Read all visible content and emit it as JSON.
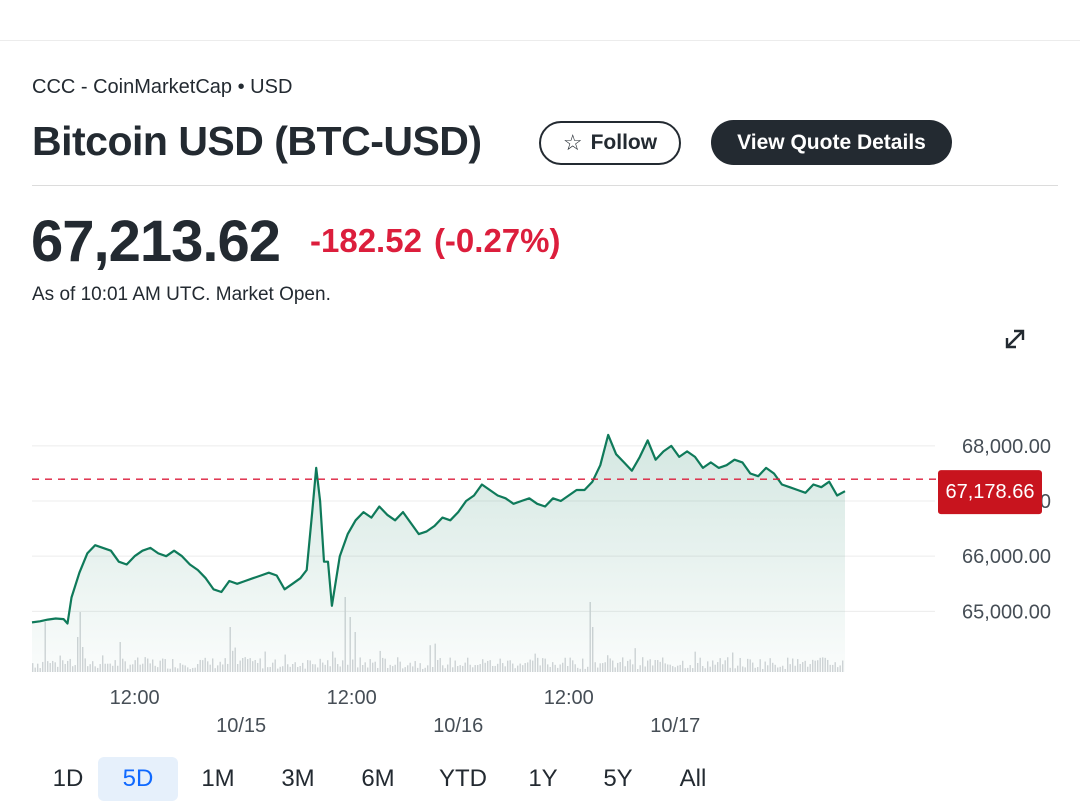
{
  "header": {
    "exchange": "CCC - CoinMarketCap • USD",
    "title": "Bitcoin USD (BTC-USD)",
    "follow_label": "Follow",
    "quote_label": "View Quote Details"
  },
  "quote": {
    "price": "67,213.62",
    "change": "-182.52",
    "change_pct": "(-0.27%)",
    "as_of": "As of 10:01 AM UTC. Market Open.",
    "current_tag": "67,178.66"
  },
  "icons": {
    "star": "star-icon",
    "expand": "expand-icon"
  },
  "colors": {
    "line": "#0f7a5a",
    "negative": "#dc1e3c",
    "active_range": "#0f69ff"
  },
  "ranges": [
    {
      "label": "1D",
      "active": false
    },
    {
      "label": "5D",
      "active": true
    },
    {
      "label": "1M",
      "active": false
    },
    {
      "label": "3M",
      "active": false
    },
    {
      "label": "6M",
      "active": false
    },
    {
      "label": "YTD",
      "active": false
    },
    {
      "label": "1Y",
      "active": false
    },
    {
      "label": "5Y",
      "active": false
    },
    {
      "label": "All",
      "active": false
    }
  ],
  "chart_data": {
    "type": "area",
    "series": [
      {
        "points": [
          [
            0,
            64800
          ],
          [
            1,
            64820
          ],
          [
            2,
            64850
          ],
          [
            3,
            64870
          ],
          [
            4,
            64860
          ],
          [
            4.5,
            64780
          ],
          [
            5,
            65250
          ],
          [
            6,
            65700
          ],
          [
            7,
            66050
          ],
          [
            8,
            66200
          ],
          [
            9,
            66150
          ],
          [
            10,
            66100
          ],
          [
            11,
            65900
          ],
          [
            12,
            65850
          ],
          [
            13,
            66000
          ],
          [
            14,
            66100
          ],
          [
            15,
            66150
          ],
          [
            16,
            66050
          ],
          [
            17,
            66000
          ],
          [
            18,
            66100
          ],
          [
            19,
            66000
          ],
          [
            20,
            65850
          ],
          [
            21,
            65750
          ],
          [
            22,
            65600
          ],
          [
            23,
            65400
          ],
          [
            24,
            65350
          ],
          [
            25,
            65550
          ],
          [
            26,
            65500
          ],
          [
            27,
            65550
          ],
          [
            28,
            65600
          ],
          [
            29,
            65650
          ],
          [
            30,
            65700
          ],
          [
            31,
            65650
          ],
          [
            32,
            65400
          ],
          [
            33,
            65500
          ],
          [
            34,
            65600
          ],
          [
            34.8,
            65750
          ],
          [
            35.5,
            66800
          ],
          [
            36,
            67600
          ],
          [
            36.5,
            67000
          ],
          [
            37,
            65900
          ],
          [
            37.5,
            65900
          ],
          [
            38,
            65100
          ],
          [
            39,
            66000
          ],
          [
            40,
            66400
          ],
          [
            41,
            66650
          ],
          [
            42,
            66800
          ],
          [
            43,
            66700
          ],
          [
            44,
            66900
          ],
          [
            45,
            66750
          ],
          [
            46,
            66650
          ],
          [
            47,
            66800
          ],
          [
            48,
            66600
          ],
          [
            49,
            66400
          ],
          [
            50,
            66450
          ],
          [
            51,
            66550
          ],
          [
            52,
            66700
          ],
          [
            53,
            66650
          ],
          [
            54,
            66800
          ],
          [
            55,
            67000
          ],
          [
            56,
            67100
          ],
          [
            57,
            67300
          ],
          [
            58,
            67200
          ],
          [
            59,
            67100
          ],
          [
            60,
            67050
          ],
          [
            61,
            66950
          ],
          [
            62,
            67000
          ],
          [
            63,
            67050
          ],
          [
            64,
            66950
          ],
          [
            65,
            66900
          ],
          [
            66,
            67050
          ],
          [
            67,
            67000
          ],
          [
            68,
            67100
          ],
          [
            69,
            67200
          ],
          [
            70,
            67200
          ],
          [
            71,
            67350
          ],
          [
            72,
            67650
          ],
          [
            73,
            68200
          ],
          [
            74,
            67850
          ],
          [
            75,
            67700
          ],
          [
            76,
            67550
          ],
          [
            77,
            67800
          ],
          [
            78,
            68100
          ],
          [
            79,
            67750
          ],
          [
            80,
            67900
          ],
          [
            81,
            68000
          ],
          [
            82,
            67800
          ],
          [
            83,
            67900
          ],
          [
            84,
            67800
          ],
          [
            85,
            67600
          ],
          [
            86,
            67700
          ],
          [
            87,
            67600
          ],
          [
            88,
            67650
          ],
          [
            89,
            67750
          ],
          [
            90,
            67700
          ],
          [
            91,
            67500
          ],
          [
            92,
            67450
          ],
          [
            93,
            67600
          ],
          [
            94,
            67500
          ],
          [
            95,
            67300
          ],
          [
            96,
            67250
          ],
          [
            97,
            67200
          ],
          [
            98,
            67150
          ],
          [
            99,
            67300
          ],
          [
            100,
            67250
          ],
          [
            101,
            67350
          ],
          [
            102,
            67100
          ],
          [
            103,
            67178.66
          ]
        ]
      }
    ],
    "y_ticks": [
      "68,000.00",
      "67,000.00",
      "66,000.00",
      "65,000.00"
    ],
    "y_tick_values": [
      68000,
      67000,
      66000,
      65000
    ],
    "x_time_ticks": [
      {
        "x": 13,
        "label": "12:00"
      },
      {
        "x": 40.5,
        "label": "12:00"
      },
      {
        "x": 68,
        "label": "12:00"
      }
    ],
    "x_date_ticks": [
      {
        "x": 26.5,
        "label": "10/15"
      },
      {
        "x": 54,
        "label": "10/16"
      },
      {
        "x": 81.5,
        "label": "10/17"
      }
    ],
    "xlim": [
      0,
      103
    ],
    "ylim": [
      63900,
      68560
    ],
    "reference": 67396.14,
    "current": 67178.66,
    "grid": true
  }
}
